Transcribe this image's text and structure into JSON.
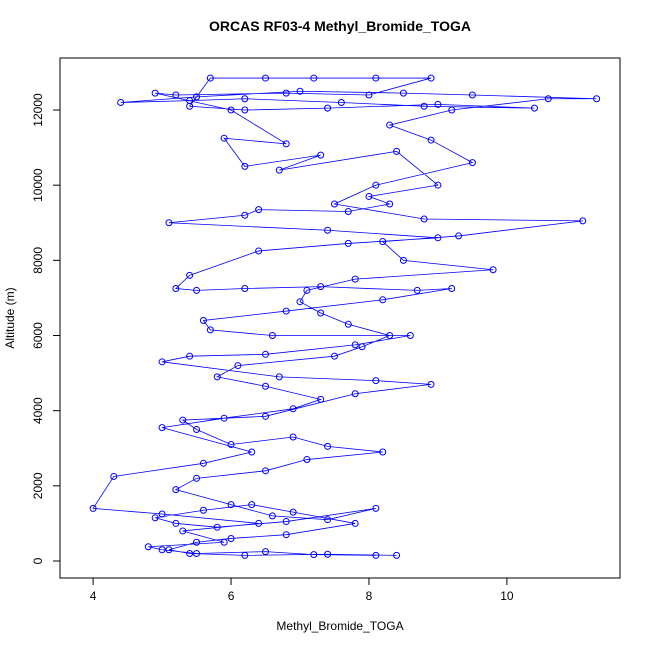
{
  "chart_data": {
    "type": "line",
    "title": "ORCAS RF03-4 Methyl_Bromide_TOGA",
    "x_label": "Methyl_Bromide_TOGA",
    "y_label": "Altitude (m)",
    "x": [
      8.1,
      7.2,
      6.5,
      5.5,
      5.0,
      4.8,
      5.9,
      5.3,
      6.4,
      5.0,
      4.0,
      4.3,
      5.6,
      6.3,
      5.0,
      5.9,
      6.9,
      7.3,
      6.5,
      5.8,
      6.1,
      7.5,
      7.9,
      8.3,
      7.7,
      7.3,
      7.0,
      7.1,
      7.8,
      9.8,
      8.5,
      8.2,
      9.3,
      11.1,
      8.8,
      7.5,
      8.1,
      9.5,
      8.9,
      8.3,
      9.2,
      10.6,
      11.3,
      9.5,
      8.5,
      7.0,
      5.5,
      4.4,
      5.4,
      6.2,
      7.6,
      8.8,
      10.4,
      9.0,
      7.4,
      6.2,
      5.4,
      5.7,
      6.5,
      7.2,
      8.1,
      8.9,
      8.0,
      6.8,
      5.2,
      4.9,
      6.0,
      6.8,
      5.9,
      6.2,
      7.3,
      6.7,
      8.4,
      9.0,
      8.0,
      8.3,
      7.7,
      6.4,
      6.2,
      5.1,
      7.4,
      9.0,
      7.7,
      6.4,
      5.4,
      5.2,
      5.5,
      6.2,
      7.3,
      8.7,
      9.2,
      8.2,
      6.8,
      5.6,
      5.7,
      6.6,
      8.6,
      7.8,
      6.5,
      5.4,
      5.0,
      6.7,
      8.1,
      8.9,
      7.8,
      6.5,
      5.3,
      5.5,
      6.0,
      6.9,
      7.4,
      8.2,
      7.1,
      6.5,
      5.5,
      5.2,
      6.0,
      6.6,
      7.4,
      8.1,
      6.8,
      5.8,
      5.2,
      4.9,
      5.6,
      6.3,
      6.9,
      7.8,
      6.8,
      6.0,
      5.5,
      5.1,
      5.4,
      6.2,
      7.4,
      8.4
    ],
    "values": [
      150,
      170,
      250,
      200,
      300,
      380,
      500,
      800,
      1000,
      1250,
      1400,
      2250,
      2600,
      2900,
      3550,
      3800,
      4050,
      4300,
      4650,
      4900,
      5200,
      5450,
      5700,
      6000,
      6300,
      6600,
      6900,
      7200,
      7500,
      7750,
      8000,
      8500,
      8650,
      9050,
      9100,
      9500,
      10000,
      10600,
      11200,
      11600,
      12000,
      12300,
      12300,
      12400,
      12450,
      12500,
      12350,
      12200,
      12250,
      12300,
      12200,
      12100,
      12050,
      12150,
      12050,
      12000,
      12100,
      12850,
      12850,
      12850,
      12850,
      12850,
      12400,
      12450,
      12400,
      12450,
      12000,
      11100,
      11250,
      10500,
      10800,
      10400,
      10900,
      10000,
      9700,
      9500,
      9300,
      9350,
      9200,
      9000,
      8800,
      8600,
      8450,
      8250,
      7600,
      7250,
      7200,
      7250,
      7300,
      7200,
      7250,
      6950,
      6650,
      6400,
      6150,
      6000,
      6000,
      5750,
      5500,
      5450,
      5300,
      4900,
      4800,
      4700,
      4450,
      3850,
      3750,
      3500,
      3100,
      3300,
      3050,
      2900,
      2700,
      2400,
      2200,
      1900,
      1500,
      1200,
      1100,
      1400,
      1050,
      900,
      1000,
      1150,
      1350,
      1500,
      1300,
      1000,
      700,
      600,
      500,
      300,
      200,
      150,
      180,
      150
    ],
    "color": "#0000ff",
    "xlim": [
      3.52,
      11.64
    ],
    "ylim": [
      -452,
      13384
    ],
    "xticks": [
      4,
      6,
      8,
      10
    ],
    "yticks": [
      0,
      2000,
      4000,
      6000,
      8000,
      10000,
      12000
    ]
  }
}
